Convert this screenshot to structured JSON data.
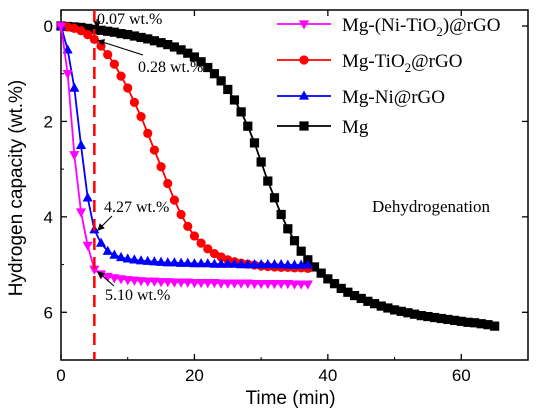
{
  "chart_data": {
    "type": "line",
    "title": "",
    "xlabel": "Time (min)",
    "ylabel": "Hydrogen capacity (wt.%)",
    "xlim": [
      0,
      70
    ],
    "ylim": [
      0,
      7
    ],
    "y_inverted": true,
    "xticks": [
      0,
      20,
      40,
      60
    ],
    "yticks": [
      0,
      2,
      4,
      6
    ],
    "grid": false,
    "legend_position": "top-right",
    "inner_label": "Dehydrogenation",
    "series": [
      {
        "name": "Mg-(Ni-TiO₂)@rGO",
        "legend_main": "Mg-(Ni-TiO",
        "legend_sub": "2",
        "legend_tail": ")@rGO",
        "color": "#ff00ff",
        "marker": "triangle-down",
        "x": [
          0,
          1,
          2,
          3,
          4,
          5,
          6,
          7,
          8,
          9,
          10,
          11,
          12,
          13,
          14,
          15,
          16,
          17,
          18,
          19,
          20,
          21,
          22,
          23,
          24,
          25,
          26,
          27,
          28,
          29,
          30,
          31,
          32,
          33,
          34,
          35,
          36,
          37
        ],
        "y": [
          0,
          1.0,
          2.7,
          3.9,
          4.6,
          5.1,
          5.2,
          5.25,
          5.28,
          5.3,
          5.32,
          5.33,
          5.34,
          5.35,
          5.35,
          5.36,
          5.36,
          5.37,
          5.37,
          5.37,
          5.38,
          5.38,
          5.38,
          5.38,
          5.39,
          5.39,
          5.39,
          5.39,
          5.39,
          5.4,
          5.4,
          5.4,
          5.4,
          5.4,
          5.4,
          5.41,
          5.41,
          5.41
        ]
      },
      {
        "name": "Mg-TiO₂@rGO",
        "legend_main": "Mg-TiO",
        "legend_sub": "2",
        "legend_tail": "@rGO",
        "color": "#ff0000",
        "marker": "circle",
        "x": [
          0,
          1,
          2,
          3,
          4,
          5,
          6,
          7,
          8,
          9,
          10,
          11,
          12,
          13,
          14,
          15,
          16,
          17,
          18,
          19,
          20,
          21,
          22,
          23,
          24,
          25,
          26,
          27,
          28,
          29,
          30,
          31,
          32,
          33,
          34,
          35,
          36,
          37
        ],
        "y": [
          0,
          0.02,
          0.05,
          0.1,
          0.18,
          0.28,
          0.42,
          0.6,
          0.8,
          1.05,
          1.3,
          1.6,
          1.9,
          2.25,
          2.6,
          2.95,
          3.3,
          3.65,
          3.95,
          4.2,
          4.4,
          4.55,
          4.67,
          4.77,
          4.84,
          4.9,
          4.94,
          4.97,
          4.99,
          5.01,
          5.03,
          5.04,
          5.05,
          5.06,
          5.06,
          5.07,
          5.07,
          5.08
        ]
      },
      {
        "name": "Mg-Ni@rGO",
        "legend_main": "Mg-Ni@rGO",
        "legend_sub": "",
        "legend_tail": "",
        "color": "#0000ff",
        "marker": "triangle-up",
        "x": [
          0,
          1,
          2,
          3,
          4,
          5,
          6,
          7,
          8,
          9,
          10,
          11,
          12,
          13,
          14,
          15,
          16,
          17,
          18,
          19,
          20,
          21,
          22,
          23,
          24,
          25,
          26,
          27,
          28,
          29,
          30,
          31,
          32,
          33,
          34,
          35,
          36,
          37
        ],
        "y": [
          0,
          0.5,
          1.3,
          2.5,
          3.6,
          4.27,
          4.55,
          4.72,
          4.8,
          4.85,
          4.88,
          4.9,
          4.92,
          4.93,
          4.94,
          4.95,
          4.96,
          4.96,
          4.97,
          4.97,
          4.98,
          4.98,
          4.98,
          4.99,
          4.99,
          4.99,
          4.99,
          5.0,
          5.0,
          5.0,
          5.0,
          5.0,
          5.0,
          5.0,
          5.01,
          5.01,
          5.01,
          5.01
        ]
      },
      {
        "name": "Mg",
        "legend_main": "Mg",
        "legend_sub": "",
        "legend_tail": "",
        "color": "#000000",
        "marker": "square",
        "x": [
          0,
          1,
          2,
          3,
          4,
          5,
          6,
          7,
          8,
          9,
          10,
          11,
          12,
          13,
          14,
          15,
          16,
          17,
          18,
          19,
          20,
          21,
          22,
          23,
          24,
          25,
          26,
          27,
          28,
          29,
          30,
          31,
          32,
          33,
          34,
          35,
          36,
          37,
          38,
          39,
          40,
          41,
          42,
          43,
          44,
          45,
          46,
          47,
          48,
          49,
          50,
          51,
          52,
          53,
          54,
          55,
          56,
          57,
          58,
          59,
          60,
          61,
          62,
          63,
          64,
          65
        ],
        "y": [
          0,
          0.01,
          0.02,
          0.03,
          0.05,
          0.07,
          0.09,
          0.11,
          0.13,
          0.16,
          0.18,
          0.21,
          0.24,
          0.27,
          0.31,
          0.35,
          0.39,
          0.44,
          0.5,
          0.57,
          0.65,
          0.75,
          0.87,
          1.0,
          1.15,
          1.33,
          1.55,
          1.8,
          2.1,
          2.45,
          2.85,
          3.25,
          3.6,
          3.95,
          4.25,
          4.5,
          4.72,
          4.9,
          5.05,
          5.18,
          5.3,
          5.4,
          5.5,
          5.58,
          5.65,
          5.71,
          5.77,
          5.82,
          5.87,
          5.91,
          5.95,
          5.98,
          6.01,
          6.04,
          6.07,
          6.09,
          6.11,
          6.13,
          6.15,
          6.17,
          6.19,
          6.21,
          6.22,
          6.24,
          6.26,
          6.29
        ]
      }
    ],
    "reference_line": {
      "x": 5,
      "color": "#ff0000",
      "style": "dashed"
    },
    "annotations": [
      {
        "text": "0.07 wt.%",
        "x": 5,
        "y": 0.07
      },
      {
        "text": "0.28 wt.%",
        "x": 5,
        "y": 0.28
      },
      {
        "text": "4.27 wt.%",
        "x": 5,
        "y": 4.27
      },
      {
        "text": "5.10 wt.%",
        "x": 5,
        "y": 5.1
      }
    ]
  }
}
